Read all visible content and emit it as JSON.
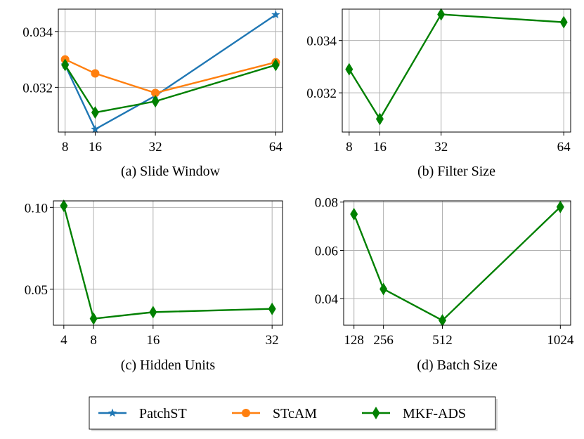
{
  "legend": [
    {
      "name": "PatchST",
      "color": "#1f77b4",
      "marker": "star"
    },
    {
      "name": "STcAM",
      "color": "#ff7f0e",
      "marker": "circle"
    },
    {
      "name": "MKF-ADS",
      "color": "#008000",
      "marker": "diamond"
    }
  ],
  "chart_data": [
    {
      "type": "line",
      "title": "(a) Slide Window",
      "x": [
        8,
        16,
        32,
        64
      ],
      "xticks": [
        "8",
        "16",
        "32",
        "64"
      ],
      "yticks": [
        0.032,
        0.034
      ],
      "ytick_labels": [
        "0.032",
        "0.034"
      ],
      "ylim": [
        0.0304,
        0.0348
      ],
      "xlim": [
        6.2,
        65.8
      ],
      "grid": true,
      "series": [
        {
          "name": "PatchST",
          "values": [
            0.0328,
            0.0305,
            0.0317,
            0.0346
          ]
        },
        {
          "name": "STcAM",
          "values": [
            0.033,
            0.0325,
            0.0318,
            0.0329
          ]
        },
        {
          "name": "MKF-ADS",
          "values": [
            0.0328,
            0.0311,
            0.0315,
            0.0328
          ]
        }
      ]
    },
    {
      "type": "line",
      "title": "(b) Filter Size",
      "x": [
        8,
        16,
        32,
        64
      ],
      "xticks": [
        "8",
        "16",
        "32",
        "64"
      ],
      "yticks": [
        0.032,
        0.034
      ],
      "ytick_labels": [
        "0.032",
        "0.034"
      ],
      "ylim": [
        0.0305,
        0.0352
      ],
      "xlim": [
        6.2,
        65.8
      ],
      "grid": true,
      "series": [
        {
          "name": "MKF-ADS",
          "values": [
            0.0329,
            0.031,
            0.035,
            0.0347
          ]
        }
      ]
    },
    {
      "type": "line",
      "title": "(c) Hidden Units",
      "x": [
        4,
        8,
        16,
        32
      ],
      "xticks": [
        "4",
        "8",
        "16",
        "32"
      ],
      "yticks": [
        0.05,
        0.1
      ],
      "ytick_labels": [
        "0.05",
        "0.10"
      ],
      "ylim": [
        0.028,
        0.104
      ],
      "xlim": [
        2.6,
        33.4
      ],
      "grid": true,
      "series": [
        {
          "name": "MKF-ADS",
          "values": [
            0.101,
            0.032,
            0.036,
            0.038
          ]
        }
      ]
    },
    {
      "type": "line",
      "title": "(d) Batch Size",
      "x": [
        128,
        256,
        512,
        1024
      ],
      "xticks": [
        "128",
        "256",
        "512",
        "1024"
      ],
      "yticks": [
        0.04,
        0.06,
        0.08
      ],
      "ytick_labels": [
        "0.04",
        "0.06",
        "0.08"
      ],
      "ylim": [
        0.029,
        0.0805
      ],
      "xlim": [
        83.2,
        1068.8
      ],
      "grid": true,
      "series": [
        {
          "name": "MKF-ADS",
          "values": [
            0.075,
            0.044,
            0.031,
            0.078
          ]
        }
      ]
    }
  ]
}
